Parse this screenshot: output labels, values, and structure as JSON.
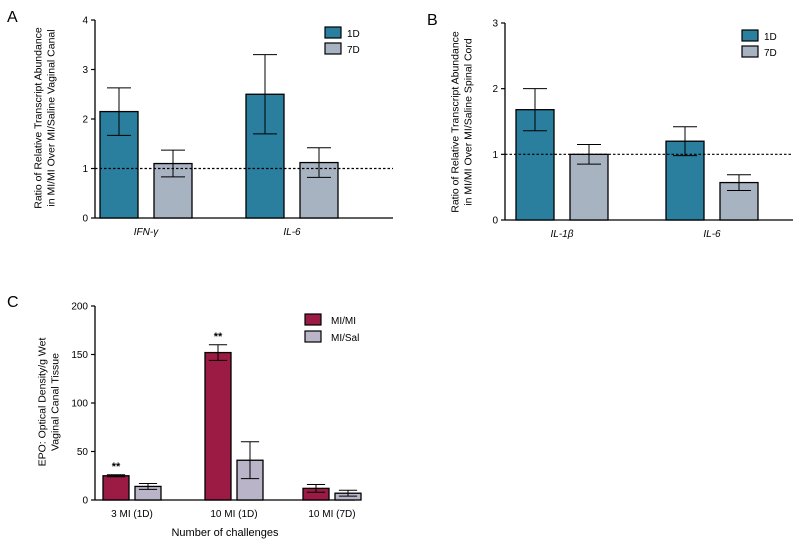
{
  "colors": {
    "blue": "#2a7e9e",
    "gray": "#a8b3c2",
    "maroon": "#9b1b45",
    "lavender": "#b9b4c8"
  },
  "chart_data": [
    {
      "id": "A",
      "panel_label": "A",
      "type": "bar",
      "ylabel_lines": [
        "Ratio of Relative Transcript Abundance",
        "in MI/MI Over MI/Saline Vaginal Canal"
      ],
      "xlabel": "",
      "ylim": [
        0,
        4
      ],
      "yticks": [
        "0",
        "1",
        "2",
        "3",
        "4"
      ],
      "reference_line": 1,
      "categories": [
        "IFN-γ",
        "IL-6"
      ],
      "category_italic": true,
      "series": [
        {
          "name": "1D",
          "color": "#2a7e9e",
          "values": [
            2.15,
            2.5
          ],
          "errors": [
            0.48,
            0.8
          ]
        },
        {
          "name": "7D",
          "color": "#a8b3c2",
          "values": [
            1.1,
            1.12
          ],
          "errors": [
            0.27,
            0.3
          ]
        }
      ],
      "annotations": []
    },
    {
      "id": "B",
      "panel_label": "B",
      "type": "bar",
      "ylabel_lines": [
        "Ratio of Relative Transcript Abundance",
        "in MI/MI Over MI/Saline Spinal Cord"
      ],
      "xlabel": "",
      "ylim": [
        0,
        3
      ],
      "yticks": [
        "0",
        "1",
        "2",
        "3"
      ],
      "reference_line": 1,
      "categories": [
        "IL-1β",
        "IL-6"
      ],
      "category_italic": true,
      "series": [
        {
          "name": "1D",
          "color": "#2a7e9e",
          "values": [
            1.68,
            1.2
          ],
          "errors": [
            0.32,
            0.22
          ]
        },
        {
          "name": "7D",
          "color": "#a8b3c2",
          "values": [
            1.0,
            0.57
          ],
          "errors": [
            0.15,
            0.12
          ]
        }
      ],
      "annotations": []
    },
    {
      "id": "C",
      "panel_label": "C",
      "type": "bar",
      "ylabel_lines": [
        "EPO: Optical Density/g Wet",
        "Vaginal Canal Tissue"
      ],
      "xlabel": "Number of challenges",
      "ylim": [
        0,
        200
      ],
      "yticks": [
        "0",
        "50",
        "100",
        "150",
        "200"
      ],
      "reference_line": null,
      "categories": [
        "3 MI (1D)",
        "10 MI (1D)",
        "10 MI (7D)"
      ],
      "category_italic": false,
      "series": [
        {
          "name": "MI/MI",
          "color": "#9b1b45",
          "values": [
            25,
            152,
            12
          ],
          "errors": [
            1,
            8,
            4
          ]
        },
        {
          "name": "MI/Sal",
          "color": "#b9b4c8",
          "values": [
            14,
            41,
            7
          ],
          "errors": [
            3,
            19,
            3
          ]
        }
      ],
      "annotations": [
        {
          "text": "**",
          "category": 0,
          "series": 0
        },
        {
          "text": "**",
          "category": 1,
          "series": 0
        }
      ]
    }
  ]
}
